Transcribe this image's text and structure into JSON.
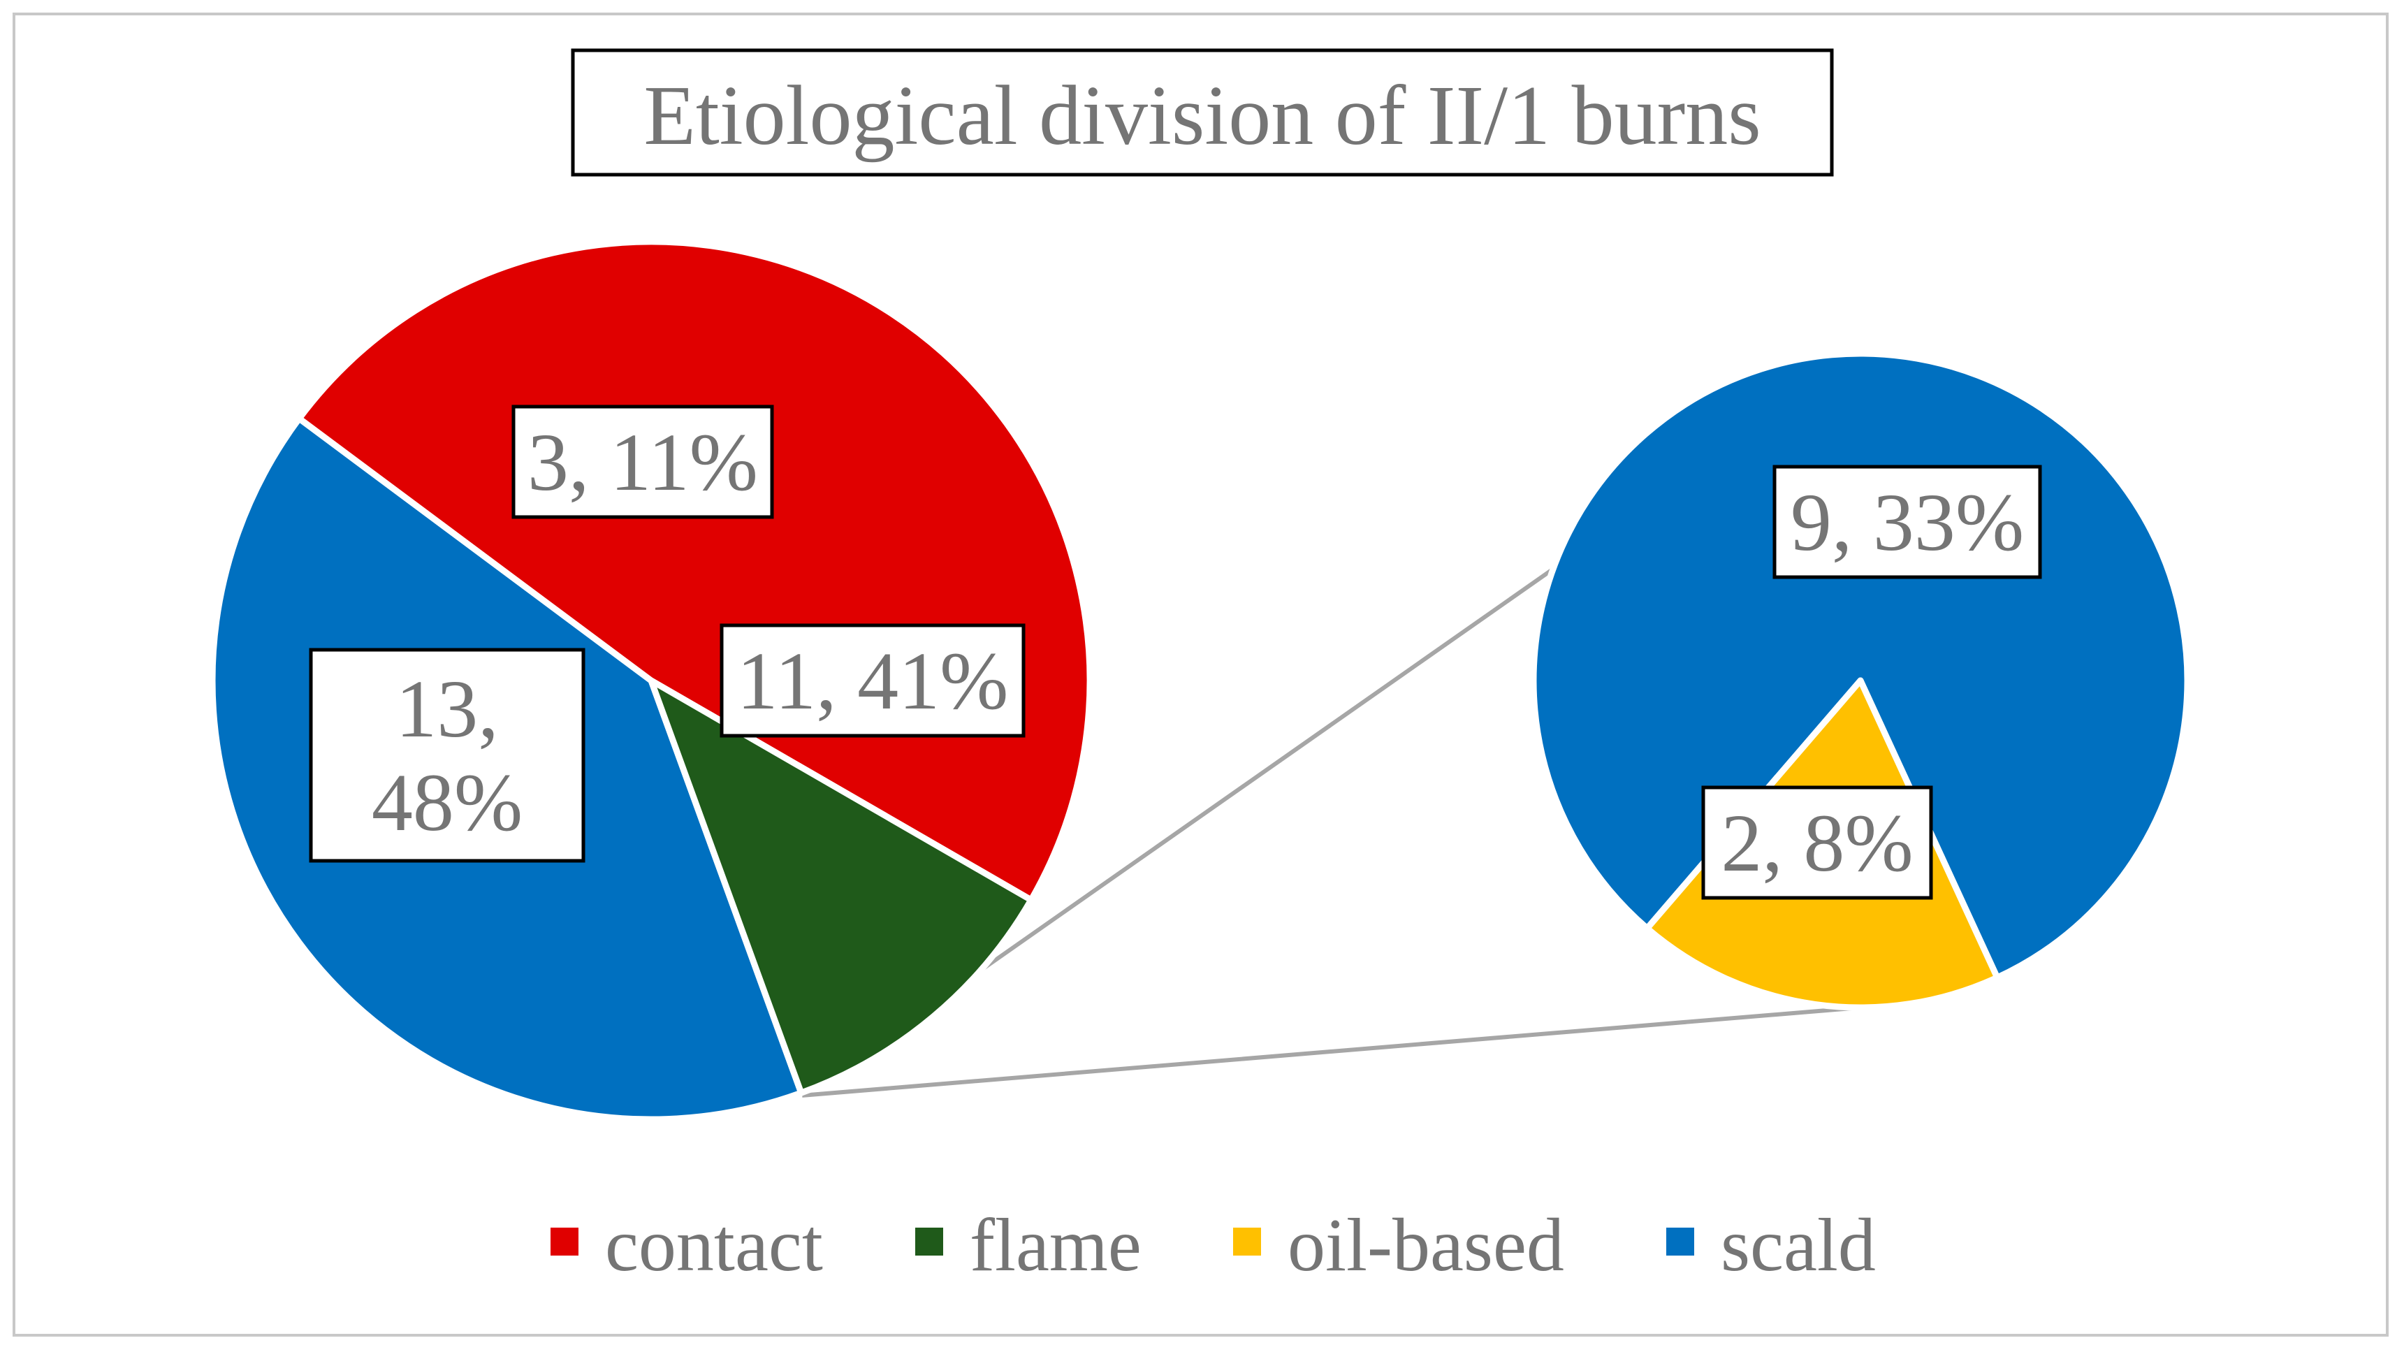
{
  "chart_data": {
    "type": "pie",
    "subtype": "pie-of-pie",
    "title": "Etiological division of II/1 burns",
    "colors": {
      "contact": "#e00000",
      "flame": "#1f5a1a",
      "oil-based": "#ffc000",
      "scald": "#0070c0",
      "connector": "#a6a6a6",
      "text": "#757575"
    },
    "primary_pie": {
      "slices": [
        {
          "key": "contact",
          "value": 13,
          "percent": "48%",
          "label": [
            "13,",
            "48%"
          ]
        },
        {
          "key": "flame",
          "value": 3,
          "percent": "11%",
          "label": [
            "3, 11%"
          ]
        },
        {
          "key": "scald",
          "value": 11,
          "percent": "41%",
          "label": [
            "11, 41%"
          ]
        }
      ]
    },
    "secondary_pie": {
      "slices": [
        {
          "key": "scald",
          "value": 9,
          "percent": "33%",
          "label": [
            "9, 33%"
          ]
        },
        {
          "key": "oil-based",
          "value": 2,
          "percent": "8%",
          "label": [
            "2, 8%"
          ]
        }
      ]
    },
    "legend": {
      "position": "bottom",
      "entries": [
        {
          "key": "contact",
          "label": "contact"
        },
        {
          "key": "flame",
          "label": "flame"
        },
        {
          "key": "oil-based",
          "label": "oil-based"
        },
        {
          "key": "scald",
          "label": "scald"
        }
      ]
    }
  }
}
